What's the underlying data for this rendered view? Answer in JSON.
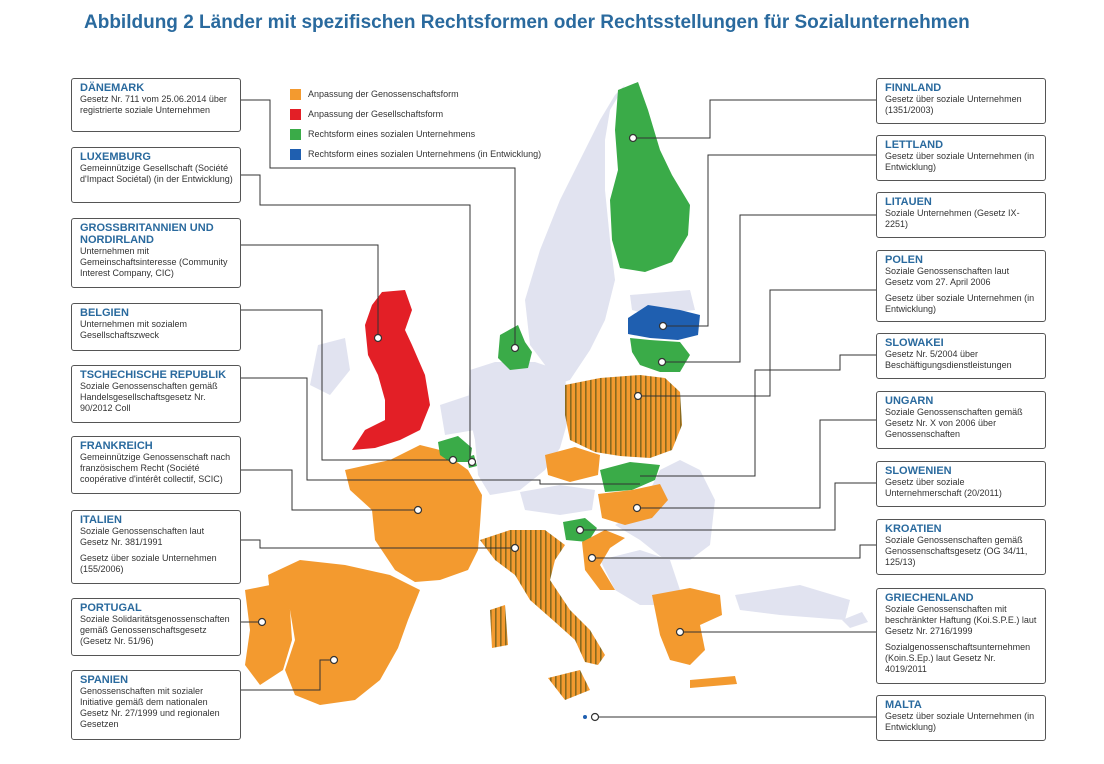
{
  "title": "Abbildung 2 Länder mit spezifischen Rechtsformen oder Rechtsstellungen für Sozialunternehmen",
  "colors": {
    "orange": "#f39a2f",
    "red": "#e31f26",
    "green": "#3aab48",
    "blue": "#1f5fb0",
    "grey": "#e1e3f0",
    "hatch": "#8a6a1e"
  },
  "legend": [
    {
      "label": "Anpassung der Genossenschaftsform",
      "color": "#f39a2f"
    },
    {
      "label": "Anpassung der Gesellschaftsform",
      "color": "#e31f26"
    },
    {
      "label": "Rechtsform eines sozialen Unternehmens",
      "color": "#3aab48"
    },
    {
      "label": "Rechtsform eines sozialen Unternehmens (in Entwicklung)",
      "color": "#1f5fb0"
    }
  ],
  "countries": {
    "daenemark": {
      "name": "DÄNEMARK",
      "desc": "Gesetz Nr. 711 vom 25.06.2014 über registrierte soziale Unternehmen"
    },
    "luxemburg": {
      "name": "LUXEMBURG",
      "desc": "Gemeinnützige Gesellschaft (Société d'Impact Sociétal) (in der Entwicklung)"
    },
    "gb": {
      "name": "GROSSBRITANNIEN UND NORDIRLAND",
      "desc": "Unternehmen mit Gemeinschaftsinteresse (Community Interest Company, CIC)"
    },
    "belgien": {
      "name": "BELGIEN",
      "desc": "Unternehmen mit sozialem Gesellschaftszweck"
    },
    "tschechien": {
      "name": "TSCHECHISCHE REPUBLIK",
      "desc": "Soziale Genossenschaften gemäß Handelsgesellschaftsgesetz Nr. 90/2012 Coll"
    },
    "frankreich": {
      "name": "FRANKREICH",
      "desc": "Gemeinnützige Genossenschaft nach französischem Recht (Société coopérative d'intérêt collectif, SCIC)"
    },
    "italien": {
      "name": "ITALIEN",
      "desc": "Soziale Genossenschaften laut Gesetz Nr. 381/1991",
      "desc2": "Gesetz über soziale Unternehmen (155/2006)"
    },
    "portugal": {
      "name": "PORTUGAL",
      "desc": "Soziale Solidaritätsgenossenschaften gemäß Genossenschaftsgesetz (Gesetz Nr. 51/96)"
    },
    "spanien": {
      "name": "SPANIEN",
      "desc": "Genossenschaften mit sozialer Initiative gemäß dem nationalen Gesetz Nr. 27/1999 und regionalen Gesetzen"
    },
    "finnland": {
      "name": "FINNLAND",
      "desc": "Gesetz über soziale Unternehmen (1351/2003)"
    },
    "lettland": {
      "name": "LETTLAND",
      "desc": "Gesetz über soziale Unternehmen (in Entwicklung)"
    },
    "litauen": {
      "name": "LITAUEN",
      "desc": "Soziale Unternehmen (Gesetz IX-2251)"
    },
    "polen": {
      "name": "POLEN",
      "desc": "Soziale Genossenschaften laut Gesetz vom 27. April 2006",
      "desc2": "Gesetz über soziale Unternehmen (in Entwicklung)"
    },
    "slowakei": {
      "name": "SLOWAKEI",
      "desc": "Gesetz Nr. 5/2004 über Beschäftigungsdienstleistungen"
    },
    "ungarn": {
      "name": "UNGARN",
      "desc": "Soziale Genossenschaften gemäß Gesetz Nr. X von 2006 über Genossenschaften"
    },
    "slowenien": {
      "name": "SLOWENIEN",
      "desc": "Gesetz über soziale Unternehmerschaft (20/2011)"
    },
    "kroatien": {
      "name": "KROATIEN",
      "desc": "Soziale Genossenschaften gemäß Genossenschaftsgesetz (OG 34/11, 125/13)"
    },
    "griechenland": {
      "name": "GRIECHENLAND",
      "desc": "Soziale Genossenschaften mit beschränkter Haftung (Koi.S.P.E.) laut Gesetz Nr. 2716/1999",
      "desc2": "Sozialgenossenschaftsunternehmen (Koin.S.Ep.) laut Gesetz Nr. 4019/2011"
    },
    "malta": {
      "name": "MALTA",
      "desc": "Gesetz über soziale Unternehmen (in Entwicklung)"
    }
  }
}
